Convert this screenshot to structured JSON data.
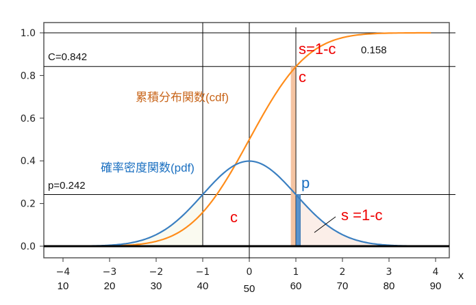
{
  "chart_data": {
    "type": "line",
    "title": "",
    "xlabel": "x",
    "ylabel": "",
    "xlim": [
      -4.4,
      4.3
    ],
    "ylim": [
      -0.05,
      1.05
    ],
    "grid": false,
    "x_ticks": [
      "−4",
      "−3",
      "−2",
      "−1",
      "0",
      "1",
      "2",
      "3",
      "4"
    ],
    "x_tick_values": [
      -4,
      -3,
      -2,
      -1,
      0,
      1,
      2,
      3,
      4
    ],
    "x_ticks_secondary": [
      "10",
      "20",
      "30",
      "40",
      "50",
      "60",
      "70",
      "80",
      "90"
    ],
    "y_ticks": [
      "0.0",
      "0.2",
      "0.4",
      "0.6",
      "0.8",
      "1.0"
    ],
    "y_tick_values": [
      0,
      0.2,
      0.4,
      0.6,
      0.8,
      1.0
    ],
    "series": [
      {
        "name": "確率密度関数(pdf)",
        "function": "normal_pdf",
        "mean": 0,
        "sd": 1,
        "x_range": [
          -4,
          3.9
        ],
        "color": "#3a7fc1"
      },
      {
        "name": "累積分布関数(cdf)",
        "function": "normal_cdf",
        "mean": 0,
        "sd": 1,
        "x_range": [
          -4,
          3.9
        ],
        "color": "#ff8c1a"
      }
    ],
    "reference_lines": {
      "horizontal": [
        1.0,
        0.842,
        0.242
      ],
      "vertical": [
        -1,
        0,
        1
      ]
    },
    "bars": [
      {
        "name": "c",
        "x": 0.95,
        "value": 0.842,
        "color": "#f5c4a2"
      },
      {
        "name": "p",
        "x": 1.05,
        "value": 0.242,
        "color": "#3a7fc1"
      }
    ],
    "annotations": {
      "c_value": "C=0.842",
      "p_value": "p=0.242",
      "s_top": "s=1-c",
      "s_value": "0.158",
      "c_top": "c",
      "c_bottom": "c",
      "p_label": "p",
      "s_bottom": "s =1-c",
      "cdf_label": "累積分布関数(cdf)",
      "pdf_label": "確率密度関数(pdf)"
    }
  }
}
